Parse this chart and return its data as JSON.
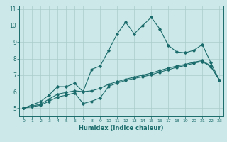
{
  "title": "",
  "xlabel": "Humidex (Indice chaleur)",
  "ylabel": "",
  "bg_color": "#cde8e8",
  "line_color": "#1a6b6b",
  "grid_color": "#aacccc",
  "xlim": [
    -0.5,
    23.5
  ],
  "ylim": [
    4.5,
    11.2
  ],
  "xticks": [
    0,
    1,
    2,
    3,
    4,
    5,
    6,
    7,
    8,
    9,
    10,
    11,
    12,
    13,
    14,
    15,
    16,
    17,
    18,
    19,
    20,
    21,
    22,
    23
  ],
  "yticks": [
    5,
    6,
    7,
    8,
    9,
    10,
    11
  ],
  "series1": {
    "x": [
      0,
      1,
      2,
      3,
      4,
      5,
      6,
      7,
      8,
      9,
      10,
      11,
      12,
      13,
      14,
      15,
      16,
      17,
      18,
      19,
      20,
      21,
      22,
      23
    ],
    "y": [
      5.0,
      5.2,
      5.4,
      5.8,
      6.3,
      6.3,
      6.5,
      6.0,
      7.35,
      7.55,
      8.5,
      9.5,
      10.2,
      9.5,
      10.0,
      10.5,
      9.8,
      8.8,
      8.4,
      8.35,
      8.5,
      8.85,
      7.75,
      6.7
    ]
  },
  "series2": {
    "x": [
      0,
      1,
      2,
      3,
      4,
      5,
      6,
      7,
      8,
      9,
      10,
      11,
      12,
      13,
      14,
      15,
      16,
      17,
      18,
      19,
      20,
      21,
      22,
      23
    ],
    "y": [
      5.0,
      5.12,
      5.25,
      5.55,
      5.85,
      5.95,
      6.05,
      6.0,
      6.05,
      6.2,
      6.45,
      6.6,
      6.75,
      6.88,
      7.0,
      7.12,
      7.28,
      7.42,
      7.55,
      7.65,
      7.78,
      7.88,
      7.55,
      6.7
    ]
  },
  "series3": {
    "x": [
      0,
      1,
      2,
      3,
      4,
      5,
      6,
      7,
      8,
      9,
      10,
      11,
      12,
      13,
      14,
      15,
      16,
      17,
      18,
      19,
      20,
      21,
      22,
      23
    ],
    "y": [
      5.0,
      5.08,
      5.18,
      5.42,
      5.68,
      5.78,
      5.92,
      5.28,
      5.42,
      5.62,
      6.32,
      6.52,
      6.68,
      6.8,
      6.9,
      7.02,
      7.18,
      7.32,
      7.48,
      7.58,
      7.72,
      7.82,
      7.5,
      6.7
    ]
  }
}
